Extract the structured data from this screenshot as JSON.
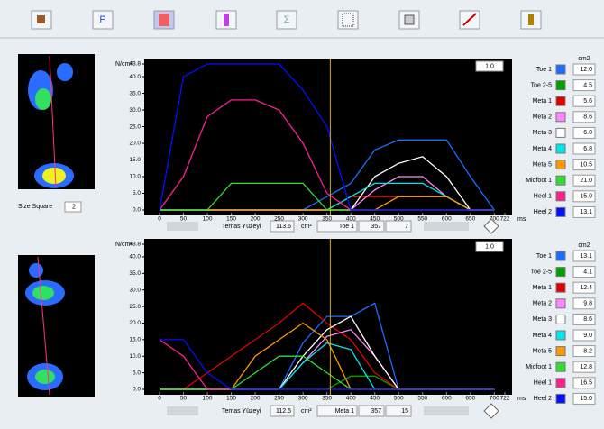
{
  "toolbar": {
    "buttons": [
      "P",
      "Σ"
    ]
  },
  "left_panel": {
    "size_square_label": "Size Square",
    "size_square": "2"
  },
  "chart_data": [
    {
      "type": "line",
      "y_label": "N/cm²",
      "x_label": "ms",
      "legend_header": "cm2",
      "scale": "1.0",
      "cursor": 357,
      "status": {
        "label": "Temas Yüzeyi",
        "area": "113.6",
        "unit": "cm²",
        "region": "Toe 1",
        "index": "7"
      },
      "x": [
        0,
        50,
        100,
        150,
        200,
        250,
        300,
        350,
        400,
        450,
        500,
        550,
        600,
        650,
        700
      ],
      "xlim": [
        0,
        722
      ],
      "xticks": [
        0,
        50,
        100,
        150,
        200,
        250,
        300,
        350,
        400,
        450,
        500,
        550,
        600,
        650,
        700,
        722
      ],
      "ylim": [
        0,
        43.8
      ],
      "yticks": [
        {
          "value": 0,
          "label": "0.0"
        },
        {
          "value": 5,
          "label": "5.0"
        },
        {
          "value": 10,
          "label": "10.0"
        },
        {
          "value": 15,
          "label": "15.0"
        },
        {
          "value": 20,
          "label": "20.0"
        },
        {
          "value": 25,
          "label": "25.0"
        },
        {
          "value": 30,
          "label": "30.0"
        },
        {
          "value": 35,
          "label": "35.0"
        },
        {
          "value": 40,
          "label": "40.0"
        },
        43.8
      ],
      "series": [
        {
          "name": "Toe 1",
          "color": "#1e6cff",
          "area": "12.0",
          "values": [
            0,
            0,
            0,
            0,
            0,
            0,
            0,
            4,
            8,
            18,
            21,
            21,
            21,
            10,
            0
          ]
        },
        {
          "name": "Toe 2-5",
          "color": "#00a000",
          "area": "4.5",
          "values": [
            0,
            0,
            0,
            0,
            0,
            0,
            0,
            0,
            4,
            4,
            4,
            4,
            4,
            0,
            0
          ]
        },
        {
          "name": "Meta 1",
          "color": "#e00000",
          "area": "5.6",
          "values": [
            0,
            0,
            0,
            0,
            0,
            0,
            0,
            0,
            4,
            4,
            4,
            4,
            4,
            0,
            0
          ]
        },
        {
          "name": "Meta 2",
          "color": "#ff88ff",
          "area": "8.6",
          "values": [
            0,
            0,
            0,
            0,
            0,
            0,
            0,
            0,
            0,
            6,
            10,
            10,
            4,
            0,
            0
          ]
        },
        {
          "name": "Meta 3",
          "color": "#ffffff",
          "area": "6.0",
          "values": [
            0,
            0,
            0,
            0,
            0,
            0,
            0,
            0,
            0,
            10,
            14,
            16,
            10,
            0,
            0
          ]
        },
        {
          "name": "Meta 4",
          "color": "#00e5ee",
          "area": "6.8",
          "values": [
            0,
            0,
            0,
            0,
            0,
            0,
            0,
            0,
            4,
            8,
            8,
            8,
            4,
            0,
            0
          ]
        },
        {
          "name": "Meta 5",
          "color": "#ff9900",
          "area": "10.5",
          "values": [
            0,
            0,
            0,
            0,
            0,
            0,
            0,
            0,
            0,
            0,
            4,
            4,
            4,
            0,
            0
          ]
        },
        {
          "name": "Midfoot 1",
          "color": "#33dd33",
          "area": "21.0",
          "values": [
            0,
            0,
            0,
            8,
            8,
            8,
            8,
            0,
            0,
            0,
            0,
            0,
            0,
            0,
            0
          ]
        },
        {
          "name": "Heel 1",
          "color": "#ff1f8f",
          "area": "15.0",
          "values": [
            0,
            10,
            28,
            33,
            33,
            30,
            20,
            5,
            0,
            0,
            0,
            0,
            0,
            0,
            0
          ]
        },
        {
          "name": "Heel 2",
          "color": "#0010ff",
          "area": "13.1",
          "values": [
            0,
            40,
            43.8,
            43.8,
            43.8,
            43.8,
            36,
            25,
            0,
            0,
            0,
            0,
            0,
            0,
            0
          ]
        }
      ]
    },
    {
      "type": "line",
      "y_label": "N/cm²",
      "x_label": "ms",
      "legend_header": "cm2",
      "scale": "1.0",
      "cursor": 357,
      "status": {
        "label": "Temas Yüzeyi",
        "area": "112.5",
        "unit": "cm²",
        "region": "Meta 1",
        "index": "15"
      },
      "x": [
        0,
        50,
        100,
        150,
        200,
        250,
        300,
        350,
        400,
        450,
        500,
        550,
        600,
        650,
        700
      ],
      "xlim": [
        0,
        722
      ],
      "xticks": [
        0,
        50,
        100,
        150,
        200,
        250,
        300,
        350,
        400,
        450,
        500,
        550,
        600,
        650,
        700,
        722
      ],
      "ylim": [
        0,
        43.8
      ],
      "yticks": [
        {
          "value": 0,
          "label": "0.0"
        },
        {
          "value": 5,
          "label": "5.0"
        },
        {
          "value": 10,
          "label": "10.0"
        },
        {
          "value": 15,
          "label": "15.0"
        },
        {
          "value": 20,
          "label": "20.0"
        },
        {
          "value": 25,
          "label": "25.0"
        },
        {
          "value": 30,
          "label": "30.0"
        },
        {
          "value": 35,
          "label": "35.0"
        },
        {
          "value": 40,
          "label": "40.0"
        },
        43.8
      ],
      "series": [
        {
          "name": "Toe 1",
          "color": "#1e6cff",
          "area": "13.1",
          "values": [
            0,
            0,
            0,
            0,
            0,
            0,
            14,
            22,
            22,
            26,
            0,
            0,
            0,
            0,
            0
          ]
        },
        {
          "name": "Toe 2-5",
          "color": "#00a000",
          "area": "4.1",
          "values": [
            0,
            0,
            0,
            0,
            0,
            0,
            0,
            0,
            4,
            4,
            0,
            0,
            0,
            0,
            0
          ]
        },
        {
          "name": "Meta 1",
          "color": "#e00000",
          "area": "12.4",
          "values": [
            0,
            0,
            5,
            10,
            15,
            20,
            26,
            20,
            15,
            5,
            0,
            0,
            0,
            0,
            0
          ]
        },
        {
          "name": "Meta 2",
          "color": "#ff88ff",
          "area": "9.8",
          "values": [
            0,
            0,
            0,
            0,
            0,
            0,
            8,
            16,
            18,
            10,
            0,
            0,
            0,
            0,
            0
          ]
        },
        {
          "name": "Meta 3",
          "color": "#ffffff",
          "area": "8.6",
          "values": [
            0,
            0,
            0,
            0,
            0,
            0,
            10,
            18,
            22,
            10,
            0,
            0,
            0,
            0,
            0
          ]
        },
        {
          "name": "Meta 4",
          "color": "#00e5ee",
          "area": "9.0",
          "values": [
            0,
            0,
            0,
            0,
            0,
            0,
            8,
            14,
            12,
            0,
            0,
            0,
            0,
            0,
            0
          ]
        },
        {
          "name": "Meta 5",
          "color": "#ff9900",
          "area": "8.2",
          "values": [
            0,
            0,
            0,
            0,
            10,
            15,
            20,
            15,
            0,
            0,
            0,
            0,
            0,
            0,
            0
          ]
        },
        {
          "name": "Midfoot 1",
          "color": "#33dd33",
          "area": "12.8",
          "values": [
            0,
            0,
            0,
            0,
            5,
            10,
            10,
            5,
            0,
            0,
            0,
            0,
            0,
            0,
            0
          ]
        },
        {
          "name": "Heel 1",
          "color": "#ff1f8f",
          "area": "16.5",
          "values": [
            15,
            10,
            0,
            0,
            0,
            0,
            0,
            0,
            0,
            0,
            0,
            0,
            0,
            0,
            0
          ]
        },
        {
          "name": "Heel 2",
          "color": "#0010ff",
          "area": "15.0",
          "values": [
            15,
            15,
            5,
            0,
            0,
            0,
            0,
            0,
            0,
            0,
            0,
            0,
            0,
            0,
            0
          ]
        }
      ]
    }
  ]
}
